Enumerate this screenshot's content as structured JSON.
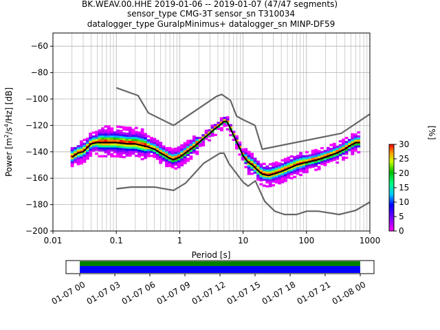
{
  "title_lines": [
    "BK.WEAV.00.HHE   2019-01-06 -- 2019-01-07  (47/47 segments)",
    "sensor_type CMG-3T sensor_sn T310034",
    "datalogger_type GuralpMinimus+ datalogger_sn MINP-DF59"
  ],
  "chart_data": [
    {
      "type": "heatmap",
      "title": "BK.WEAV.00.HHE   2019-01-06 -- 2019-01-07  (47/47 segments)",
      "xlabel": "Period [s]",
      "ylabel_parts": {
        "a": "Power [m",
        "b": "2",
        "c": "/s",
        "d": "4",
        "e": "/Hz] [dB]"
      },
      "xscale": "log",
      "xlim": [
        0.01,
        1000
      ],
      "ylim": [
        -200,
        -50
      ],
      "x_ticks": [
        0.01,
        0.1,
        1,
        10,
        100,
        1000
      ],
      "x_tick_labels": [
        "0.01",
        "0.1",
        "1",
        "10",
        "100",
        "1000"
      ],
      "y_ticks": [
        -60,
        -80,
        -100,
        -120,
        -140,
        -160,
        -180,
        -200
      ],
      "y_tick_labels": [
        "−60",
        "−80",
        "−100",
        "−120",
        "−140",
        "−160",
        "−180",
        "−200"
      ],
      "grid": true,
      "colorbar": {
        "label": "[%]",
        "range": [
          0,
          30
        ],
        "ticks": [
          0,
          5,
          10,
          15,
          20,
          25,
          30
        ],
        "tick_labels": [
          "0",
          "5",
          "10",
          "15",
          "20",
          "25",
          "30"
        ]
      },
      "series": [
        {
          "name": "",
          "role": "mode",
          "color": "#000000",
          "x": [
            0.02,
            0.025,
            0.03,
            0.04,
            0.05,
            0.07,
            0.1,
            0.15,
            0.2,
            0.3,
            0.4,
            0.5,
            0.6,
            0.7,
            0.8,
            1.0,
            1.3,
            1.7,
            2,
            2.5,
            3,
            3.5,
            4,
            4.5,
            5,
            5.5,
            6,
            7,
            8,
            9,
            10,
            12,
            14,
            17,
            20,
            25,
            30,
            40,
            50,
            70,
            100,
            150,
            200,
            300,
            400,
            500,
            600,
            700
          ],
          "y": [
            -144,
            -141,
            -140,
            -134,
            -133,
            -133,
            -133,
            -134,
            -134,
            -136,
            -138,
            -141,
            -143,
            -145,
            -146,
            -144,
            -140,
            -136,
            -133,
            -129,
            -126,
            -123,
            -121,
            -119,
            -117,
            -117,
            -120,
            -127,
            -133,
            -138,
            -143,
            -148,
            -150,
            -154,
            -157,
            -158,
            -157,
            -155,
            -153,
            -150,
            -148,
            -146,
            -144,
            -141,
            -138,
            -135,
            -133,
            -133
          ]
        },
        {
          "name": "",
          "role": "noise-model-high",
          "color": "#666666",
          "x": [
            0.1,
            0.22,
            0.32,
            0.8,
            3.8,
            4.6,
            6.3,
            7.9,
            10,
            15.4,
            20,
            354.8,
            1000
          ],
          "y": [
            -91.5,
            -97.4,
            -110.5,
            -120,
            -98,
            -96.5,
            -101,
            -113,
            -115.7,
            -120,
            -138,
            -126,
            -111.4
          ]
        },
        {
          "name": "",
          "role": "noise-model-low",
          "color": "#666666",
          "x": [
            0.1,
            0.17,
            0.4,
            0.8,
            1.24,
            2.4,
            4.3,
            5,
            6,
            10,
            12,
            15.6,
            21.9,
            31.6,
            45,
            70,
            101,
            154,
            328,
            600,
            1000
          ],
          "y": [
            -168,
            -166.7,
            -166.7,
            -169.2,
            -163.7,
            -148.6,
            -141.1,
            -141.1,
            -149,
            -163,
            -166,
            -162,
            -177.5,
            -185,
            -187.5,
            -187.5,
            -185,
            -185,
            -187.5,
            -184.4,
            -178
          ]
        }
      ]
    },
    {
      "type": "bar",
      "title": "",
      "xlabel": "",
      "x_tick_labels": [
        "01-07 00",
        "01-07 03",
        "01-07 06",
        "01-07 09",
        "01-07 12",
        "01-07 15",
        "01-07 18",
        "01-07 21",
        "01-08 00"
      ],
      "series": [
        {
          "name": "",
          "color": "#008000",
          "coverage": "full day"
        },
        {
          "name": "",
          "color": "#0000ff",
          "coverage": "full day"
        }
      ]
    }
  ]
}
